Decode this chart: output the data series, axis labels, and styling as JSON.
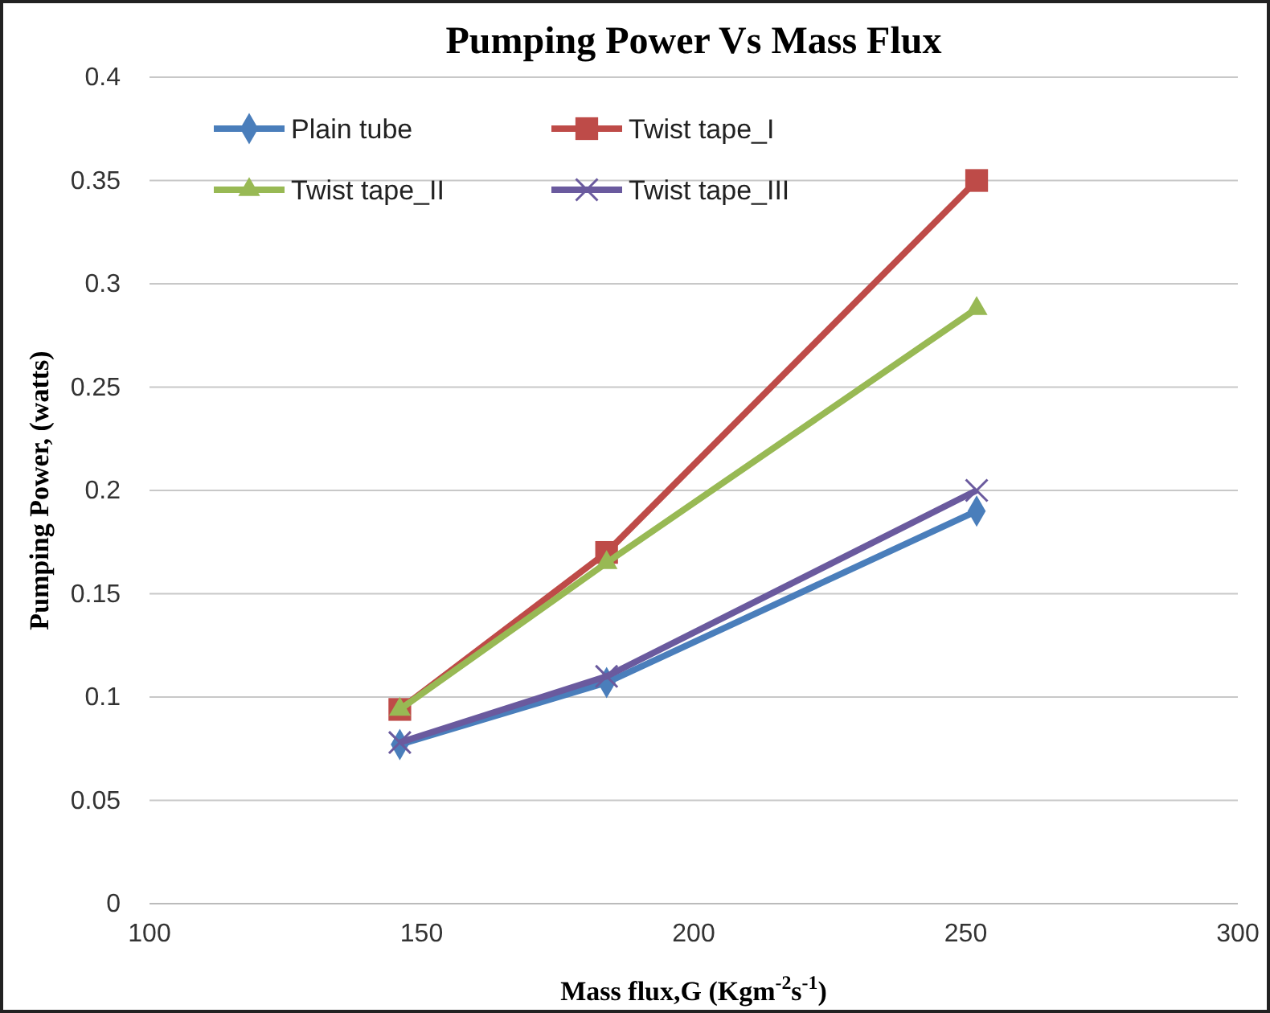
{
  "chart_data": {
    "type": "line",
    "title": "Pumping Power Vs Mass Flux",
    "xlabel": "Mass flux,G (Kgm$^{-2}$s$^{-1}$)",
    "ylabel": "Pumping Power, (watts)",
    "x": [
      146,
      184,
      252
    ],
    "series": [
      {
        "name": "Plain tube",
        "color": "#4a7ebb",
        "marker": "diamond",
        "values": [
          0.077,
          0.107,
          0.19
        ]
      },
      {
        "name": "Twist tape_I",
        "color": "#be4b48",
        "marker": "square",
        "values": [
          0.094,
          0.17,
          0.35
        ]
      },
      {
        "name": "Twist tape_II",
        "color": "#98b954",
        "marker": "triangle",
        "values": [
          0.094,
          0.165,
          0.288
        ]
      },
      {
        "name": "Twist tape_III",
        "color": "#6a5a9e",
        "marker": "cross",
        "values": [
          0.078,
          0.11,
          0.2
        ]
      }
    ],
    "xlim": [
      100,
      300
    ],
    "xticks": [
      100,
      150,
      200,
      250,
      300
    ],
    "ylim": [
      0,
      0.4
    ],
    "yticks": [
      {
        "value": 0,
        "label": "0"
      },
      {
        "value": 0.05,
        "label": "0.05"
      },
      {
        "value": 0.1,
        "label": "0.1"
      },
      {
        "value": 0.15,
        "label": "0.15"
      },
      {
        "value": 0.2,
        "label": "0.2"
      },
      {
        "value": 0.25,
        "label": "0.25"
      },
      {
        "value": 0.3,
        "label": "0.3"
      },
      {
        "value": 0.35,
        "label": "0.35"
      },
      {
        "value": 0.4,
        "label": "0.4"
      }
    ],
    "grid": "y",
    "legend": "top left"
  }
}
